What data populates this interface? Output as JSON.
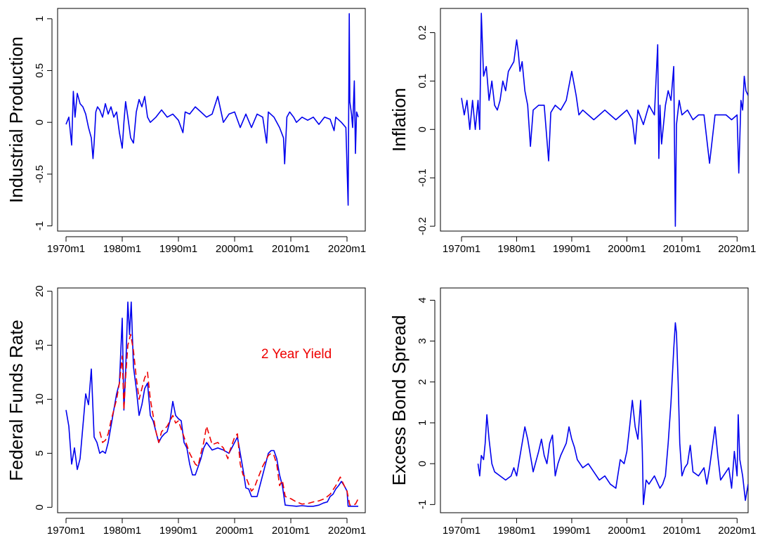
{
  "colors": {
    "primary_series": "#0000ee",
    "secondary_series": "#ee0000",
    "axis": "#000000"
  },
  "chart_data": [
    {
      "type": "line",
      "title": "",
      "xlabel": "",
      "ylabel": "Industrial Production",
      "x_tick_labels": [
        "1970m1",
        "1980m1",
        "1990m1",
        "2000m1",
        "2010m1",
        "2020m1"
      ],
      "x_ticks": [
        1970,
        1980,
        1990,
        2000,
        2010,
        2020
      ],
      "xlim": [
        1970,
        2022
      ],
      "y_ticks": [
        -1,
        -0.5,
        0,
        0.5,
        1
      ],
      "y_tick_labels": [
        "-1",
        "-0.5",
        "0",
        "0.5",
        "1"
      ],
      "ylim": [
        -1.05,
        1.1
      ],
      "series": [
        {
          "name": "",
          "x": [
            1970.0,
            1970.5,
            1971.0,
            1971.3,
            1971.6,
            1972.0,
            1972.5,
            1973.0,
            1973.5,
            1974.0,
            1974.5,
            1974.8,
            1975.0,
            1975.3,
            1975.6,
            1976.0,
            1976.5,
            1977.0,
            1977.5,
            1978.0,
            1978.5,
            1979.0,
            1979.5,
            1980.0,
            1980.3,
            1980.6,
            1981.0,
            1981.5,
            1982.0,
            1982.5,
            1983.0,
            1983.5,
            1984.0,
            1984.5,
            1985.0,
            1986.0,
            1987.0,
            1988.0,
            1989.0,
            1990.0,
            1990.8,
            1991.2,
            1992.0,
            1993.0,
            1994.0,
            1995.0,
            1996.0,
            1997.0,
            1998.0,
            1999.0,
            2000.0,
            2001.0,
            2002.0,
            2003.0,
            2004.0,
            2005.0,
            2005.7,
            2006.0,
            2007.0,
            2008.0,
            2008.7,
            2008.9,
            2009.3,
            2009.8,
            2010.5,
            2011.0,
            2012.0,
            2013.0,
            2014.0,
            2015.0,
            2016.0,
            2017.0,
            2017.7,
            2018.0,
            2019.0,
            2019.8,
            2020.2,
            2020.4,
            2020.5,
            2020.8,
            2021.0,
            2021.3,
            2021.5,
            2021.7,
            2022.0
          ],
          "values": [
            -0.02,
            0.05,
            -0.22,
            0.3,
            0.05,
            0.28,
            0.18,
            0.15,
            0.08,
            -0.05,
            -0.15,
            -0.35,
            -0.2,
            0.1,
            0.15,
            0.12,
            0.05,
            0.18,
            0.08,
            0.15,
            0.05,
            0.1,
            -0.1,
            -0.25,
            0.0,
            0.2,
            0.05,
            -0.15,
            -0.2,
            0.1,
            0.22,
            0.15,
            0.25,
            0.05,
            0.0,
            0.05,
            0.12,
            0.05,
            0.08,
            0.02,
            -0.1,
            0.1,
            0.08,
            0.15,
            0.1,
            0.05,
            0.08,
            0.25,
            0.0,
            0.08,
            0.1,
            -0.05,
            0.08,
            -0.05,
            0.08,
            0.05,
            -0.2,
            0.1,
            0.05,
            -0.05,
            -0.15,
            -0.4,
            0.05,
            0.1,
            0.05,
            0.0,
            0.05,
            0.02,
            0.05,
            -0.02,
            0.05,
            0.03,
            -0.08,
            0.05,
            0.0,
            -0.05,
            -0.8,
            1.05,
            0.2,
            0.08,
            -0.05,
            0.4,
            -0.3,
            0.1,
            0.05
          ]
        }
      ]
    },
    {
      "type": "line",
      "title": "",
      "xlabel": "",
      "ylabel": "Inflation",
      "x_tick_labels": [
        "1970m1",
        "1980m1",
        "1990m1",
        "2000m1",
        "2010m1",
        "2020m1"
      ],
      "x_ticks": [
        1970,
        1980,
        1990,
        2000,
        2010,
        2020
      ],
      "xlim": [
        1970,
        2022
      ],
      "y_ticks": [
        -0.2,
        -0.1,
        0,
        0.1,
        0.2
      ],
      "y_tick_labels": [
        "-0.2",
        "-0.1",
        "0",
        "0.1",
        "0.2"
      ],
      "ylim": [
        -0.21,
        0.25
      ],
      "series": [
        {
          "name": "",
          "x": [
            1970.0,
            1970.5,
            1971.0,
            1971.5,
            1972.0,
            1972.5,
            1973.0,
            1973.3,
            1973.6,
            1974.0,
            1974.5,
            1975.0,
            1975.5,
            1976.0,
            1976.5,
            1977.0,
            1977.5,
            1978.0,
            1978.5,
            1979.0,
            1979.5,
            1980.0,
            1980.3,
            1980.6,
            1981.0,
            1981.5,
            1982.0,
            1982.5,
            1983.0,
            1984.0,
            1985.0,
            1985.8,
            1986.2,
            1987.0,
            1988.0,
            1989.0,
            1990.0,
            1990.8,
            1991.3,
            1992.0,
            1993.0,
            1994.0,
            1995.0,
            1996.0,
            1997.0,
            1998.0,
            1999.0,
            2000.0,
            2001.0,
            2001.5,
            2002.0,
            2003.0,
            2004.0,
            2005.0,
            2005.6,
            2005.8,
            2006.0,
            2006.3,
            2007.0,
            2007.5,
            2008.0,
            2008.5,
            2008.8,
            2009.0,
            2009.5,
            2010.0,
            2011.0,
            2012.0,
            2013.0,
            2014.0,
            2015.0,
            2016.0,
            2017.0,
            2018.0,
            2019.0,
            2020.0,
            2020.3,
            2020.7,
            2021.0,
            2021.3,
            2021.6,
            2022.0
          ],
          "values": [
            0.065,
            0.03,
            0.06,
            0.0,
            0.06,
            0.0,
            0.06,
            0.0,
            0.24,
            0.11,
            0.13,
            0.06,
            0.1,
            0.05,
            0.04,
            0.06,
            0.1,
            0.08,
            0.12,
            0.13,
            0.14,
            0.185,
            0.16,
            0.12,
            0.14,
            0.08,
            0.05,
            -0.035,
            0.04,
            0.05,
            0.05,
            -0.065,
            0.035,
            0.05,
            0.04,
            0.06,
            0.12,
            0.07,
            0.03,
            0.04,
            0.03,
            0.02,
            0.03,
            0.04,
            0.03,
            0.02,
            0.03,
            0.04,
            0.02,
            -0.03,
            0.04,
            0.01,
            0.05,
            0.03,
            0.175,
            -0.06,
            0.05,
            -0.03,
            0.05,
            0.08,
            0.06,
            0.13,
            -0.2,
            0.01,
            0.06,
            0.03,
            0.04,
            0.02,
            0.03,
            0.03,
            -0.07,
            0.03,
            0.03,
            0.03,
            0.02,
            0.03,
            -0.09,
            0.06,
            0.04,
            0.11,
            0.08,
            0.07
          ]
        }
      ]
    },
    {
      "type": "line",
      "title": "",
      "xlabel": "",
      "ylabel": "Federal Funds Rate",
      "x_tick_labels": [
        "1970m1",
        "1980m1",
        "1990m1",
        "2000m1",
        "2010m1",
        "2020m1"
      ],
      "x_ticks": [
        1970,
        1980,
        1990,
        2000,
        2010,
        2020
      ],
      "xlim": [
        1970,
        2022
      ],
      "y_ticks": [
        0,
        5,
        10,
        15,
        20
      ],
      "y_tick_labels": [
        "0",
        "5",
        "10",
        "15",
        "20"
      ],
      "ylim": [
        -0.5,
        20.3
      ],
      "annotations": [
        {
          "text": "2 Year Yield",
          "color": "#ee0000"
        }
      ],
      "series": [
        {
          "name": "",
          "style": "solid",
          "x": [
            1970.0,
            1970.5,
            1971.0,
            1971.5,
            1972.0,
            1972.5,
            1973.0,
            1973.5,
            1974.0,
            1974.5,
            1975.0,
            1975.5,
            1976.0,
            1976.5,
            1977.0,
            1977.5,
            1978.0,
            1978.5,
            1979.0,
            1979.5,
            1980.0,
            1980.3,
            1980.6,
            1981.0,
            1981.3,
            1981.6,
            1982.0,
            1982.5,
            1983.0,
            1983.5,
            1984.0,
            1984.5,
            1985.0,
            1985.5,
            1986.0,
            1986.5,
            1987.0,
            1987.5,
            1988.0,
            1988.5,
            1989.0,
            1989.5,
            1990.0,
            1990.5,
            1991.0,
            1991.5,
            1992.0,
            1992.5,
            1993.0,
            1994.0,
            1994.5,
            1995.0,
            1996.0,
            1997.0,
            1998.0,
            1999.0,
            2000.0,
            2000.5,
            2001.0,
            2001.5,
            2002.0,
            2002.5,
            2003.0,
            2004.0,
            2004.5,
            2005.0,
            2005.5,
            2006.0,
            2006.5,
            2007.0,
            2007.5,
            2008.0,
            2008.5,
            2009.0,
            2010.0,
            2011.0,
            2012.0,
            2013.0,
            2014.0,
            2015.0,
            2015.8,
            2016.5,
            2017.0,
            2017.5,
            2018.0,
            2018.5,
            2019.0,
            2019.5,
            2020.0,
            2020.2,
            2021.0,
            2022.0
          ],
          "values": [
            9.0,
            7.5,
            4.0,
            5.5,
            3.5,
            4.5,
            7.5,
            10.5,
            9.5,
            12.8,
            6.5,
            6.0,
            5.0,
            5.2,
            5.0,
            6.0,
            7.5,
            9.0,
            10.5,
            11.5,
            17.5,
            9.0,
            12.5,
            19.0,
            16.0,
            19.0,
            13.0,
            11.0,
            8.5,
            9.5,
            11.0,
            11.5,
            8.5,
            8.0,
            7.0,
            6.0,
            6.5,
            6.8,
            7.0,
            8.0,
            9.8,
            8.5,
            8.2,
            8.0,
            6.0,
            5.5,
            4.0,
            3.0,
            3.0,
            4.5,
            5.5,
            6.0,
            5.3,
            5.5,
            5.3,
            5.0,
            6.0,
            6.5,
            5.0,
            3.5,
            1.8,
            1.7,
            1.0,
            1.0,
            2.0,
            3.0,
            4.0,
            5.0,
            5.25,
            5.25,
            4.5,
            3.0,
            2.0,
            0.2,
            0.15,
            0.1,
            0.15,
            0.1,
            0.1,
            0.2,
            0.4,
            0.5,
            1.0,
            1.2,
            1.7,
            2.0,
            2.4,
            2.0,
            1.5,
            0.1,
            0.1,
            0.1
          ]
        },
        {
          "name": "",
          "style": "dashed",
          "x": [
            1976.0,
            1976.5,
            1977.0,
            1977.5,
            1978.0,
            1978.5,
            1979.0,
            1979.5,
            1980.0,
            1980.3,
            1980.6,
            1981.0,
            1981.5,
            1982.0,
            1982.5,
            1983.0,
            1984.0,
            1984.5,
            1985.0,
            1986.0,
            1986.5,
            1987.0,
            1988.0,
            1989.0,
            1989.5,
            1990.0,
            1991.0,
            1992.0,
            1993.0,
            1993.5,
            1994.0,
            1994.5,
            1995.0,
            1996.0,
            1997.0,
            1998.0,
            1998.8,
            1999.0,
            2000.0,
            2000.5,
            2001.0,
            2001.5,
            2002.0,
            2003.0,
            2003.5,
            2004.0,
            2005.0,
            2006.0,
            2006.5,
            2007.0,
            2007.5,
            2008.0,
            2008.5,
            2009.0,
            2010.0,
            2011.0,
            2012.0,
            2013.0,
            2014.0,
            2015.0,
            2016.0,
            2017.0,
            2018.0,
            2018.8,
            2019.5,
            2020.0,
            2020.5,
            2021.0,
            2021.5,
            2022.0
          ],
          "values": [
            7.0,
            6.0,
            6.2,
            6.8,
            8.0,
            9.0,
            10.0,
            11.5,
            14.0,
            9.0,
            12.0,
            15.0,
            16.0,
            14.5,
            12.0,
            10.0,
            12.0,
            12.5,
            10.0,
            7.0,
            6.0,
            7.0,
            7.5,
            8.5,
            7.8,
            8.0,
            6.5,
            5.0,
            4.0,
            3.8,
            5.0,
            6.0,
            7.5,
            5.8,
            6.0,
            5.5,
            4.5,
            5.0,
            6.5,
            6.8,
            4.0,
            3.0,
            2.8,
            1.5,
            1.8,
            2.5,
            3.8,
            4.8,
            5.0,
            4.8,
            4.0,
            2.0,
            2.5,
            1.0,
            0.8,
            0.5,
            0.3,
            0.35,
            0.5,
            0.6,
            0.8,
            1.2,
            2.0,
            2.8,
            2.0,
            1.5,
            0.2,
            0.2,
            0.3,
            0.8
          ]
        }
      ]
    },
    {
      "type": "line",
      "title": "",
      "xlabel": "",
      "ylabel": "Excess Bond Spread",
      "x_tick_labels": [
        "1970m1",
        "1980m1",
        "1990m1",
        "2000m1",
        "2010m1",
        "2020m1"
      ],
      "x_ticks": [
        1970,
        1980,
        1990,
        2000,
        2010,
        2020
      ],
      "xlim": [
        1970,
        2022
      ],
      "y_ticks": [
        -1,
        0,
        1,
        2,
        3,
        4
      ],
      "y_tick_labels": [
        "-1",
        "0",
        "1",
        "2",
        "3",
        "4"
      ],
      "ylim": [
        -1.2,
        4.3
      ],
      "series": [
        {
          "name": "",
          "x": [
            1973.0,
            1973.3,
            1973.6,
            1974.0,
            1974.3,
            1974.6,
            1975.0,
            1975.5,
            1976.0,
            1977.0,
            1978.0,
            1979.0,
            1979.5,
            1980.0,
            1980.5,
            1981.0,
            1981.5,
            1982.0,
            1982.5,
            1983.0,
            1984.0,
            1984.5,
            1985.0,
            1985.5,
            1986.0,
            1986.5,
            1987.0,
            1987.5,
            1988.0,
            1989.0,
            1989.5,
            1990.0,
            1990.5,
            1991.0,
            1992.0,
            1993.0,
            1994.0,
            1995.0,
            1996.0,
            1997.0,
            1998.0,
            1998.8,
            1999.5,
            2000.0,
            2000.5,
            2001.0,
            2001.5,
            2002.0,
            2002.5,
            2002.8,
            2003.0,
            2003.5,
            2004.0,
            2005.0,
            2006.0,
            2006.5,
            2007.0,
            2007.5,
            2008.0,
            2008.5,
            2008.8,
            2009.0,
            2009.3,
            2009.6,
            2010.0,
            2010.5,
            2011.0,
            2011.5,
            2012.0,
            2013.0,
            2014.0,
            2014.5,
            2015.0,
            2015.5,
            2016.0,
            2016.5,
            2017.0,
            2018.0,
            2018.5,
            2019.0,
            2019.5,
            2020.0,
            2020.2,
            2020.5,
            2021.0,
            2021.5,
            2022.0
          ],
          "values": [
            0.0,
            -0.3,
            0.2,
            0.1,
            0.5,
            1.2,
            0.6,
            0.0,
            -0.2,
            -0.3,
            -0.4,
            -0.3,
            -0.1,
            -0.3,
            0.1,
            0.5,
            0.9,
            0.6,
            0.2,
            -0.2,
            0.3,
            0.6,
            0.2,
            0.0,
            0.5,
            0.7,
            -0.3,
            0.0,
            0.2,
            0.5,
            0.9,
            0.6,
            0.4,
            0.1,
            -0.1,
            0.0,
            -0.2,
            -0.4,
            -0.3,
            -0.5,
            -0.6,
            0.1,
            0.0,
            0.3,
            0.9,
            1.55,
            0.9,
            0.6,
            1.55,
            0.3,
            -1.0,
            -0.4,
            -0.5,
            -0.3,
            -0.6,
            -0.5,
            -0.3,
            0.5,
            1.5,
            2.8,
            3.45,
            3.2,
            2.0,
            0.5,
            -0.3,
            -0.1,
            0.0,
            0.45,
            -0.2,
            -0.3,
            -0.1,
            -0.5,
            -0.1,
            0.4,
            0.9,
            0.2,
            -0.4,
            -0.2,
            -0.1,
            -0.6,
            0.3,
            -0.3,
            1.2,
            0.1,
            -0.3,
            -0.9,
            -0.5
          ]
        }
      ]
    }
  ]
}
